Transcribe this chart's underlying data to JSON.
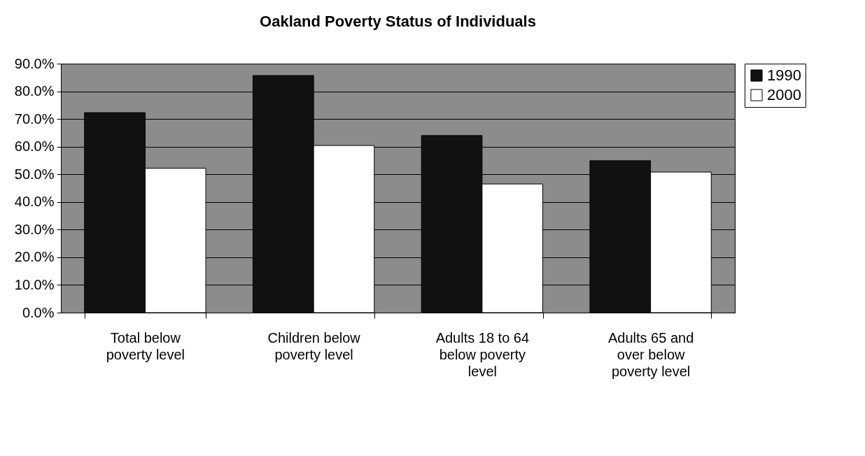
{
  "chart_data": {
    "type": "bar",
    "title": "Oakland Poverty Status of Individuals",
    "categories": [
      "Total below poverty level",
      "Children below poverty level",
      "Adults 18 to 64 below poverty level",
      "Adults 65 and over below poverty level"
    ],
    "series": [
      {
        "name": "1990",
        "color": "#111111",
        "values": [
          72.3,
          85.7,
          64.0,
          54.9
        ]
      },
      {
        "name": "2000",
        "color": "#ffffff",
        "values": [
          52.2,
          60.4,
          46.5,
          50.8
        ]
      }
    ],
    "ylim": [
      0,
      90
    ],
    "yticks": [
      {
        "value": 0,
        "label": "0.0%"
      },
      {
        "value": 10,
        "label": "10.0%"
      },
      {
        "value": 20,
        "label": "20.0%"
      },
      {
        "value": 30,
        "label": "30.0%"
      },
      {
        "value": 40,
        "label": "40.0%"
      },
      {
        "value": 50,
        "label": "50.0%"
      },
      {
        "value": 60,
        "label": "60.0%"
      },
      {
        "value": 70,
        "label": "70.0%"
      },
      {
        "value": 80,
        "label": "80.0%"
      },
      {
        "value": 90,
        "label": "90.0%"
      }
    ],
    "grid": "y",
    "legend": "right"
  }
}
